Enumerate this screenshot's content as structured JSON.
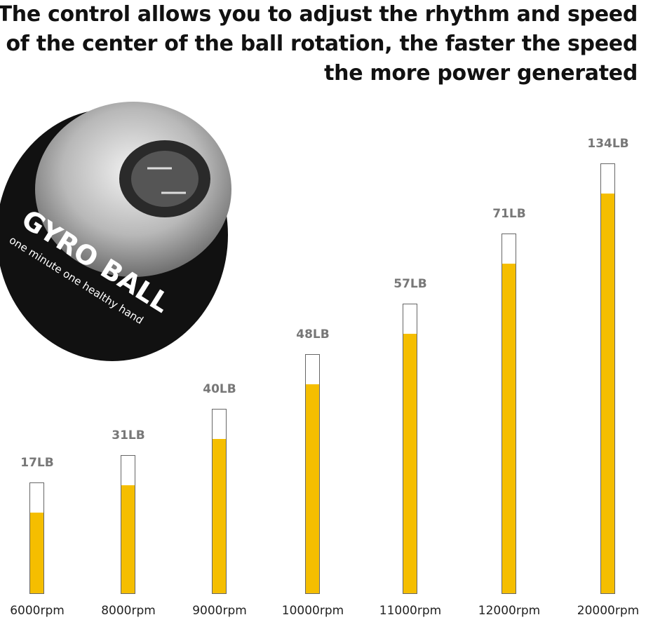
{
  "title": {
    "lines": [
      "The control allows you to adjust the rhythm and speed",
      "of the center of the ball rotation, the faster the speed",
      "the more power generated"
    ]
  },
  "product_image": {
    "logo_text": "GYRO BALL",
    "tagline": "one minute one healthy hand"
  },
  "colors": {
    "fill": "#F5BE00",
    "outline": "#666666",
    "value_label": "#777777"
  },
  "chart_data": {
    "type": "bar",
    "categories": [
      "6000rpm",
      "8000rpm",
      "9000rpm",
      "10000rpm",
      "11000rpm",
      "12000rpm",
      "20000rpm"
    ],
    "values": [
      17,
      31,
      40,
      48,
      57,
      71,
      134
    ],
    "value_labels": [
      "17LB",
      "31LB",
      "40LB",
      "48LB",
      "57LB",
      "71LB",
      "134LB"
    ],
    "title": "",
    "xlabel": "",
    "ylabel": "",
    "grid": false
  }
}
